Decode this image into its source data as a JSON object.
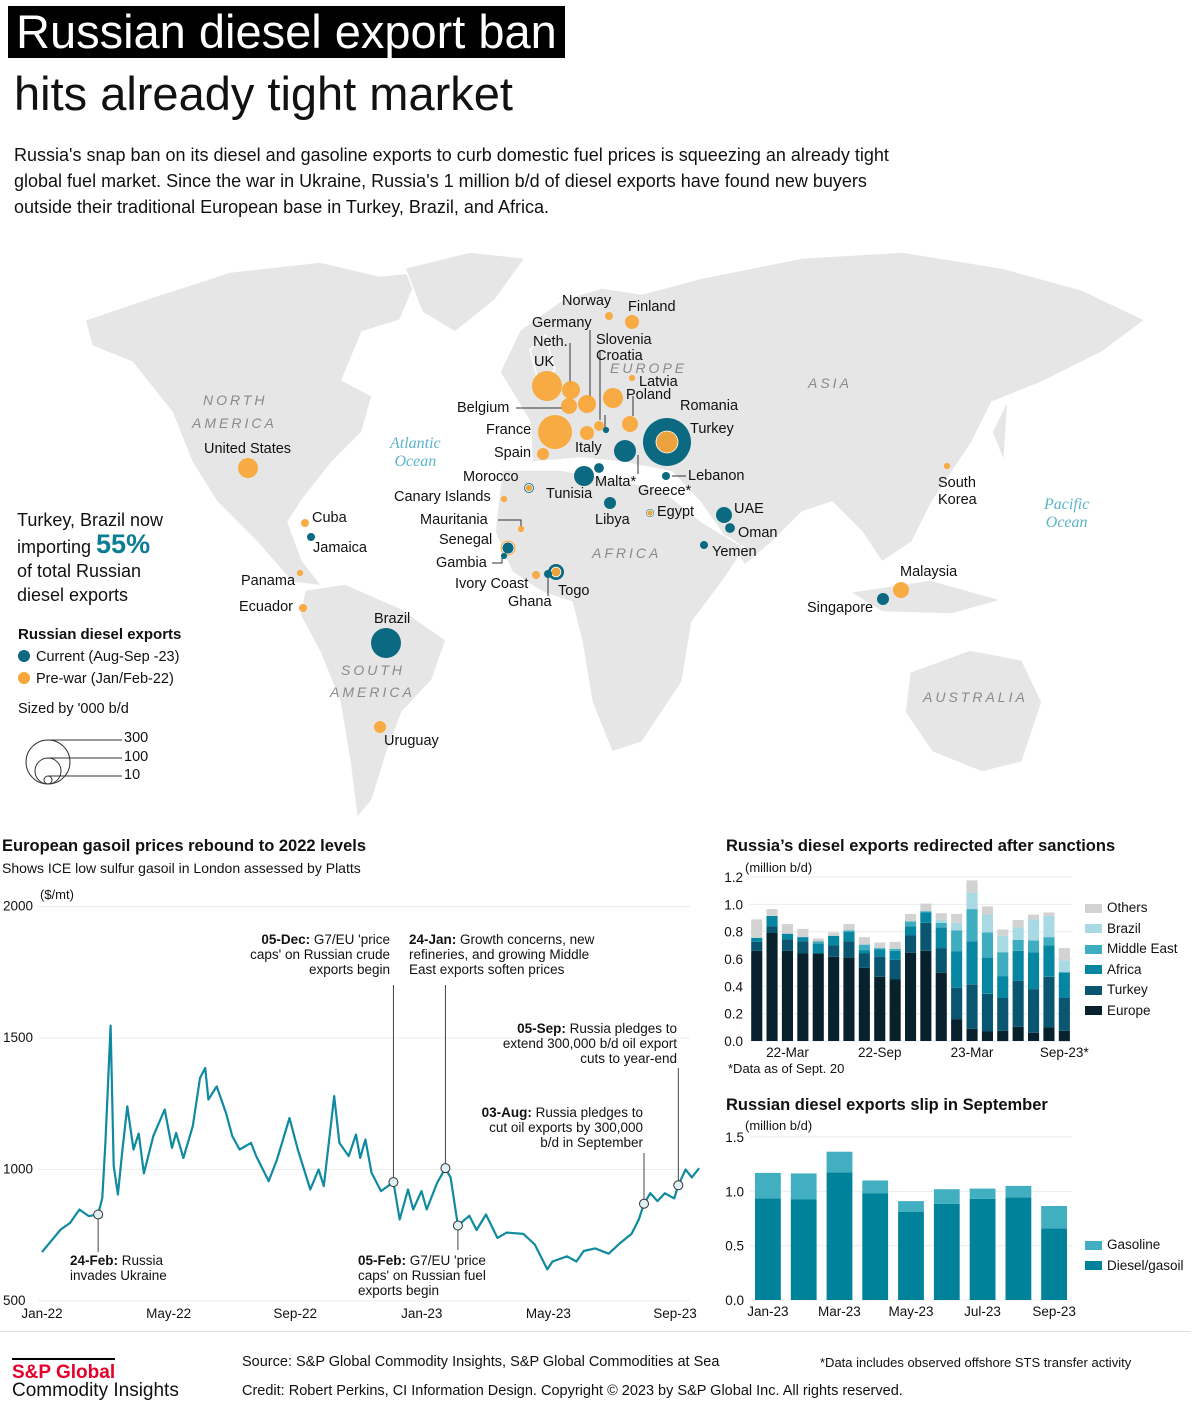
{
  "title_line1": "Russian diesel export ban",
  "title_line2": "hits already tight market",
  "intro": "Russia's snap ban on its diesel and gasoline exports to curb domestic fuel prices is squeezing an already tight global fuel market. Since the war in Ukraine, Russia's 1 million b/d of diesel exports have found new buyers outside their traditional European base in Turkey, Brazil, and Africa.",
  "map": {
    "colors": {
      "current": "#0b6a82",
      "prewar": "#f9a63a",
      "land": "#e6e6e6"
    },
    "regions": [
      "NORTH",
      "AMERICA",
      "EUROPE",
      "ASIA",
      "AFRICA",
      "SOUTH",
      "AMERICA",
      "AUSTRALIA"
    ],
    "oceans": [
      "Atlantic",
      "Ocean",
      "Pacific",
      "Ocean"
    ],
    "callout": {
      "line1": "Turkey, Brazil now",
      "line2a": "importing ",
      "highlight": "55%",
      "line3": "of total Russian",
      "line4": "diesel exports"
    },
    "legend": {
      "title": "Russian diesel exports",
      "current": "Current (Aug-Sep -23)",
      "prewar": "Pre-war (Jan/Feb-22)",
      "size_title": "Sized by '000 b/d",
      "sizes": [
        "300",
        "100",
        "10"
      ]
    },
    "countries": [
      {
        "name": "Norway",
        "prewar": 10
      },
      {
        "name": "Finland",
        "prewar": 30
      },
      {
        "name": "Germany",
        "prewar": 50
      },
      {
        "name": "Neth.",
        "prewar": 50
      },
      {
        "name": "UK",
        "prewar": 140
      },
      {
        "name": "Slovenia",
        "prewar": 15
      },
      {
        "name": "Croatia",
        "current": 6
      },
      {
        "name": "Latvia",
        "prewar": 6
      },
      {
        "name": "Poland",
        "prewar": 62
      },
      {
        "name": "Belgium",
        "prewar": 40
      },
      {
        "name": "Romania",
        "prewar": 40
      },
      {
        "name": "France",
        "prewar": 180
      },
      {
        "name": "Turkey",
        "current": 357,
        "prewar": 75
      },
      {
        "name": "Italy",
        "prewar": 30
      },
      {
        "name": "Spain",
        "prewar": 22
      },
      {
        "name": "Lebanon",
        "current": 10
      },
      {
        "name": "Morocco",
        "current": 15,
        "prewar": 8
      },
      {
        "name": "Malta*",
        "current": 15
      },
      {
        "name": "Greece*",
        "current": 75
      },
      {
        "name": "Canary Islands",
        "prewar": 6
      },
      {
        "name": "Tunisia",
        "current": 62
      },
      {
        "name": "Libya",
        "current": 22
      },
      {
        "name": "Egypt",
        "current": 10,
        "prewar": 6
      },
      {
        "name": "UAE",
        "current": 40
      },
      {
        "name": "Oman",
        "current": 15
      },
      {
        "name": "Yemen",
        "current": 10
      },
      {
        "name": "Mauritania",
        "prewar": 6
      },
      {
        "name": "Senegal",
        "current": 22,
        "prewar": 35
      },
      {
        "name": "Gambia",
        "current": 6
      },
      {
        "name": "Ivory Coast",
        "prewar": 10
      },
      {
        "name": "Togo",
        "current": 40,
        "prewar": 15
      },
      {
        "name": "Ghana",
        "current": 10
      },
      {
        "name": "United States",
        "prewar": 62
      },
      {
        "name": "Cuba",
        "prewar": 10
      },
      {
        "name": "Jamaica",
        "current": 10
      },
      {
        "name": "Panama",
        "prewar": 6
      },
      {
        "name": "Ecuador",
        "prewar": 10
      },
      {
        "name": "Brazil",
        "current": 140
      },
      {
        "name": "Uruguay",
        "prewar": 22
      },
      {
        "name": "South",
        "prewar": 6
      },
      {
        "name": "Korea"
      },
      {
        "name": "Malaysia",
        "prewar": 40
      },
      {
        "name": "Singapore",
        "current": 22
      }
    ]
  },
  "chart_data": [
    {
      "type": "line",
      "title": "European gasoil prices rebound to 2022 levels",
      "subtitle": "Shows ICE low sulfur gasoil in London assessed by Platts",
      "ylabel": "($/mt)",
      "ylim": [
        500,
        2000
      ],
      "yticks": [
        "2000",
        "1500",
        "1000",
        "500"
      ],
      "xticks": [
        "Jan-22",
        "May-22",
        "Sep-22",
        "Jan-23",
        "May-23",
        "Sep-23"
      ],
      "color": "#0f8aa0",
      "points": [
        [
          "2022-01-01",
          686
        ],
        [
          "2022-01-19",
          772
        ],
        [
          "2022-01-28",
          797
        ],
        [
          "2022-02-06",
          848
        ],
        [
          "2022-02-15",
          823
        ],
        [
          "2022-02-24",
          829
        ],
        [
          "2022-02-28",
          892
        ],
        [
          "2022-03-03",
          1101
        ],
        [
          "2022-03-08",
          1547
        ],
        [
          "2022-03-11",
          1013
        ],
        [
          "2022-03-15",
          905
        ],
        [
          "2022-03-19",
          1063
        ],
        [
          "2022-03-24",
          1240
        ],
        [
          "2022-03-30",
          1076
        ],
        [
          "2022-04-04",
          1137
        ],
        [
          "2022-04-09",
          985
        ],
        [
          "2022-04-18",
          1127
        ],
        [
          "2022-04-29",
          1228
        ],
        [
          "2022-05-06",
          1082
        ],
        [
          "2022-05-10",
          1139
        ],
        [
          "2022-05-17",
          1044
        ],
        [
          "2022-05-26",
          1165
        ],
        [
          "2022-06-02",
          1348
        ],
        [
          "2022-06-07",
          1386
        ],
        [
          "2022-06-10",
          1266
        ],
        [
          "2022-06-18",
          1316
        ],
        [
          "2022-06-27",
          1215
        ],
        [
          "2022-07-03",
          1127
        ],
        [
          "2022-07-10",
          1076
        ],
        [
          "2022-07-21",
          1101
        ],
        [
          "2022-07-26",
          1051
        ],
        [
          "2022-08-07",
          956
        ],
        [
          "2022-08-15",
          1038
        ],
        [
          "2022-08-27",
          1196
        ],
        [
          "2022-09-04",
          1076
        ],
        [
          "2022-09-16",
          924
        ],
        [
          "2022-09-24",
          1000
        ],
        [
          "2022-09-29",
          937
        ],
        [
          "2022-10-09",
          1279
        ],
        [
          "2022-10-14",
          1101
        ],
        [
          "2022-10-23",
          1051
        ],
        [
          "2022-10-30",
          1133
        ],
        [
          "2022-11-03",
          1044
        ],
        [
          "2022-11-08",
          1114
        ],
        [
          "2022-11-14",
          987
        ],
        [
          "2022-11-23",
          918
        ],
        [
          "2022-12-05",
          952
        ],
        [
          "2022-12-11",
          810
        ],
        [
          "2022-12-19",
          924
        ],
        [
          "2022-12-24",
          848
        ],
        [
          "2023-01-01",
          918
        ],
        [
          "2023-01-06",
          848
        ],
        [
          "2023-01-16",
          949
        ],
        [
          "2023-01-24",
          1005
        ],
        [
          "2023-01-29",
          970
        ],
        [
          "2023-02-05",
          787
        ],
        [
          "2023-02-16",
          824
        ],
        [
          "2023-02-23",
          770
        ],
        [
          "2023-03-04",
          829
        ],
        [
          "2023-03-15",
          740
        ],
        [
          "2023-03-24",
          760
        ],
        [
          "2023-04-09",
          755
        ],
        [
          "2023-04-20",
          715
        ],
        [
          "2023-05-02",
          620
        ],
        [
          "2023-05-07",
          650
        ],
        [
          "2023-05-21",
          670
        ],
        [
          "2023-05-30",
          650
        ],
        [
          "2023-06-06",
          690
        ],
        [
          "2023-06-17",
          700
        ],
        [
          "2023-06-30",
          680
        ],
        [
          "2023-07-11",
          720
        ],
        [
          "2023-07-22",
          755
        ],
        [
          "2023-07-29",
          810
        ],
        [
          "2023-08-03",
          870
        ],
        [
          "2023-08-09",
          910
        ],
        [
          "2023-08-16",
          880
        ],
        [
          "2023-08-23",
          910
        ],
        [
          "2023-09-01",
          890
        ],
        [
          "2023-09-05",
          940
        ],
        [
          "2023-09-12",
          1000
        ],
        [
          "2023-09-18",
          970
        ],
        [
          "2023-09-25",
          1005
        ]
      ],
      "annotations": [
        {
          "date": "2022-02-24",
          "value": 829,
          "head": "24-Feb:",
          "text": "Russia invades Ukraine"
        },
        {
          "date": "2022-12-05",
          "value": 952,
          "head": "05-Dec:",
          "text": "G7/EU 'price caps' on Russian crude exports begin"
        },
        {
          "date": "2023-01-24",
          "value": 1005,
          "head": "24-Jan:",
          "text": "Growth concerns, new refineries, and growing Middle East exports soften prices"
        },
        {
          "date": "2023-02-05",
          "value": 787,
          "head": "05-Feb:",
          "text": "G7/EU 'price caps' on Russian fuel exports begin"
        },
        {
          "date": "2023-08-03",
          "value": 870,
          "head": "03-Aug:",
          "text": "Russia pledges to cut oil exports by 300,000 b/d in September"
        },
        {
          "date": "2023-09-05",
          "value": 940,
          "head": "05-Sep:",
          "text": "Russia pledges to extend 300,000 b/d oil export cuts to year-end"
        }
      ]
    },
    {
      "type": "bar",
      "stacked": true,
      "title": "Russia’s diesel exports redirected after sanctions",
      "ylabel": "(million b/d)",
      "ylim": [
        0,
        1.2
      ],
      "yticks": [
        "0.0",
        "0.2",
        "0.4",
        "0.6",
        "0.8",
        "1.0",
        "1.2"
      ],
      "categories": [
        "Jan-22",
        "Feb-22",
        "Mar-22",
        "Apr-22",
        "May-22",
        "Jun-22",
        "Jul-22",
        "Aug-22",
        "Sep-22",
        "Oct-22",
        "Nov-22",
        "Dec-22",
        "Jan-23",
        "Feb-23",
        "Mar-23",
        "Apr-23",
        "May-23",
        "Jun-23",
        "Jul-23",
        "Aug-23",
        "Sep-23"
      ],
      "xticks": [
        {
          "index": 2,
          "label": "22-Mar"
        },
        {
          "index": 8,
          "label": "22-Sep"
        },
        {
          "index": 14,
          "label": "23-Mar"
        },
        {
          "index": 20,
          "label": "Sep-23*"
        }
      ],
      "note": "*Data as of Sept. 20",
      "series": [
        {
          "name": "Europe",
          "color": "#07222d",
          "values": [
            0.66,
            0.79,
            0.66,
            0.64,
            0.64,
            0.615,
            0.61,
            0.535,
            0.47,
            0.45,
            0.645,
            0.66,
            0.5,
            0.16,
            0.09,
            0.07,
            0.075,
            0.105,
            0.06,
            0.1,
            0.075
          ]
        },
        {
          "name": "Turkey",
          "color": "#0a5670",
          "values": [
            0.065,
            0.05,
            0.085,
            0.09,
            0,
            0.085,
            0.12,
            0.105,
            0.15,
            0.145,
            0.13,
            0.205,
            0.18,
            0.23,
            0.325,
            0.275,
            0.24,
            0.335,
            0.32,
            0.37,
            0.24
          ]
        },
        {
          "name": "Africa",
          "color": "#0686a0",
          "values": [
            0.03,
            0.075,
            0.04,
            0.03,
            0.075,
            0.07,
            0.07,
            0.025,
            0.05,
            0.065,
            0.065,
            0.075,
            0.15,
            0.265,
            0.315,
            0.265,
            0.16,
            0.22,
            0.27,
            0.23,
            0.185
          ]
        },
        {
          "name": "Middle East",
          "color": "#3fadc0",
          "values": [
            0,
            0,
            0,
            0,
            0.015,
            0,
            0.01,
            0.04,
            0.01,
            0.015,
            0.035,
            0.01,
            0.035,
            0.155,
            0.235,
            0.185,
            0.175,
            0.08,
            0.085,
            0.06,
            0.005
          ]
        },
        {
          "name": "Brazil",
          "color": "#a9d9e3",
          "values": [
            0,
            0,
            0,
            0,
            0,
            0,
            0,
            0,
            0,
            0,
            0,
            0,
            0.025,
            0.055,
            0.12,
            0.13,
            0.12,
            0.09,
            0.155,
            0.155,
            0.085
          ]
        },
        {
          "name": "Others",
          "color": "#d2d2d2",
          "values": [
            0.135,
            0.05,
            0.07,
            0.06,
            0.02,
            0.025,
            0.045,
            0.055,
            0.04,
            0.05,
            0.055,
            0.055,
            0.045,
            0.065,
            0.09,
            0.06,
            0.045,
            0.055,
            0.035,
            0.025,
            0.09
          ]
        }
      ]
    },
    {
      "type": "bar",
      "stacked": true,
      "title": "Russian diesel exports slip in September",
      "ylabel": "(million b/d)",
      "ylim": [
        0,
        1.5
      ],
      "yticks": [
        "0.0",
        "0.5",
        "1.0",
        "1.5"
      ],
      "categories": [
        "Jan-23",
        "Feb-23",
        "Mar-23",
        "Apr-23",
        "May-23",
        "Jun-23",
        "Jul-23",
        "Aug-23",
        "Sep-23"
      ],
      "xticks": [
        {
          "index": 0,
          "label": "Jan-23"
        },
        {
          "index": 2,
          "label": "Mar-23"
        },
        {
          "index": 4,
          "label": "May-23"
        },
        {
          "index": 6,
          "label": "Jul-23"
        },
        {
          "index": 8,
          "label": "Sep-23"
        }
      ],
      "series": [
        {
          "name": "Diesel/gasoil",
          "color": "#00829a",
          "values": [
            0.935,
            0.925,
            1.175,
            0.98,
            0.81,
            0.885,
            0.93,
            0.945,
            0.66
          ]
        },
        {
          "name": "Gasoline",
          "color": "#42afc1",
          "values": [
            0.235,
            0.24,
            0.19,
            0.12,
            0.1,
            0.135,
            0.095,
            0.105,
            0.205
          ]
        }
      ]
    }
  ],
  "footer": {
    "logo_line1": "S&P Global",
    "logo_line2": "Commodity Insights",
    "source": "Source: S&P Global Commodity Insights, S&P Global Commodities at Sea",
    "note": "*Data includes observed offshore STS transfer activity",
    "credit": "Credit: Robert Perkins, CI Information Design.  Copyright © 2023 by S&P Global Inc. All rights reserved."
  }
}
